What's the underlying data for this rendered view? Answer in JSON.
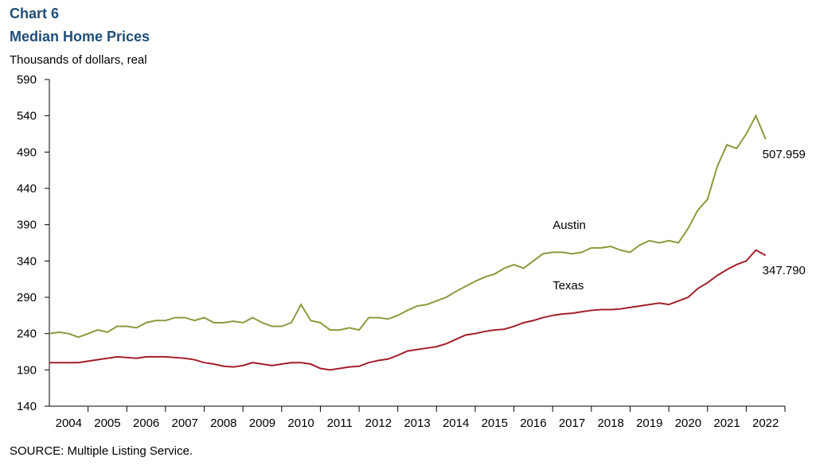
{
  "chart_data": {
    "type": "line",
    "title": "Chart 6",
    "subtitle": "Median Home Prices",
    "y_label": "Thousands  of dollars,  real",
    "source": "SOURCE: Multiple Listing Service.",
    "xlim": [
      2004,
      2023
    ],
    "xticks": [
      {
        "value": 2004.5,
        "label": "2004"
      },
      {
        "value": 2005.5,
        "label": "2005"
      },
      {
        "value": 2006.5,
        "label": "2006"
      },
      {
        "value": 2007.5,
        "label": "2007"
      },
      {
        "value": 2008.5,
        "label": "2008"
      },
      {
        "value": 2009.5,
        "label": "2009"
      },
      {
        "value": 2010.5,
        "label": "2010"
      },
      {
        "value": 2011.5,
        "label": "2011"
      },
      {
        "value": 2012.5,
        "label": "2012"
      },
      {
        "value": 2013.5,
        "label": "2013"
      },
      {
        "value": 2014.5,
        "label": "2014"
      },
      {
        "value": 2015.5,
        "label": "2015"
      },
      {
        "value": 2016.5,
        "label": "2016"
      },
      {
        "value": 2017.5,
        "label": "2017"
      },
      {
        "value": 2018.5,
        "label": "2018"
      },
      {
        "value": 2019.5,
        "label": "2019"
      },
      {
        "value": 2020.5,
        "label": "2020"
      },
      {
        "value": 2021.5,
        "label": "2021"
      },
      {
        "value": 2022.5,
        "label": "2022"
      }
    ],
    "ylim": [
      140,
      590
    ],
    "yticks": [
      140,
      190,
      240,
      290,
      340,
      390,
      440,
      490,
      540,
      590
    ],
    "grid": false,
    "x": [
      2004,
      2004.25,
      2004.5,
      2004.75,
      2005,
      2005.25,
      2005.5,
      2005.75,
      2006,
      2006.25,
      2006.5,
      2006.75,
      2007,
      2007.25,
      2007.5,
      2007.75,
      2008,
      2008.25,
      2008.5,
      2008.75,
      2009,
      2009.25,
      2009.5,
      2009.75,
      2010,
      2010.25,
      2010.5,
      2010.75,
      2011,
      2011.25,
      2011.5,
      2011.75,
      2012,
      2012.25,
      2012.5,
      2012.75,
      2013,
      2013.25,
      2013.5,
      2013.75,
      2014,
      2014.25,
      2014.5,
      2014.75,
      2015,
      2015.25,
      2015.5,
      2015.75,
      2016,
      2016.25,
      2016.5,
      2016.75,
      2017,
      2017.25,
      2017.5,
      2017.75,
      2018,
      2018.25,
      2018.5,
      2018.75,
      2019,
      2019.25,
      2019.5,
      2019.75,
      2020,
      2020.25,
      2020.5,
      2020.75,
      2021,
      2021.25,
      2021.5,
      2021.75,
      2022,
      2022.25,
      2022.5
    ],
    "series": [
      {
        "name": "Austin",
        "color": "#8c9a3e",
        "values": [
          240,
          242,
          240,
          235,
          240,
          245,
          242,
          250,
          250,
          248,
          255,
          258,
          258,
          262,
          262,
          258,
          262,
          255,
          255,
          257,
          255,
          262,
          255,
          250,
          250,
          255,
          280,
          258,
          255,
          245,
          245,
          248,
          245,
          262,
          262,
          260,
          265,
          272,
          278,
          280,
          285,
          290,
          298,
          305,
          312,
          318,
          322,
          330,
          335,
          330,
          340,
          350,
          352,
          352,
          350,
          352,
          358,
          358,
          360,
          355,
          352,
          362,
          368,
          365,
          368,
          365,
          385,
          410,
          425,
          470,
          500,
          495,
          515,
          540,
          507.959
        ],
        "value_labels": [
          null,
          null,
          null,
          null,
          null,
          null,
          null,
          null,
          null,
          null,
          null,
          null,
          null,
          null,
          null,
          null,
          null,
          null,
          null,
          null,
          null,
          null,
          null,
          null,
          null,
          null,
          null,
          null,
          null,
          null,
          null,
          null,
          null,
          null,
          null,
          null,
          null,
          null,
          null,
          null,
          null,
          null,
          null,
          null,
          null,
          null,
          null,
          null,
          null,
          null,
          null,
          null,
          null,
          null,
          null,
          null,
          null,
          null,
          null,
          null,
          null,
          null,
          null,
          null,
          null,
          null,
          null,
          null,
          null,
          null,
          null,
          null,
          null,
          null,
          "507.959"
        ]
      },
      {
        "name": "Texas",
        "color": "#a31f2b",
        "values": [
          200,
          200,
          200,
          200,
          202,
          204,
          206,
          208,
          207,
          206,
          208,
          208,
          208,
          207,
          206,
          204,
          200,
          198,
          195,
          194,
          196,
          200,
          198,
          196,
          198,
          200,
          200,
          198,
          192,
          190,
          192,
          194,
          195,
          200,
          203,
          205,
          210,
          216,
          218,
          220,
          222,
          226,
          232,
          238,
          240,
          243,
          245,
          246,
          250,
          255,
          258,
          262,
          265,
          267,
          268,
          270,
          272,
          273,
          273,
          274,
          276,
          278,
          280,
          282,
          280,
          285,
          290,
          302,
          310,
          320,
          328,
          335,
          340,
          355,
          347.79
        ],
        "value_labels": [
          null,
          null,
          null,
          null,
          null,
          null,
          null,
          null,
          null,
          null,
          null,
          null,
          null,
          null,
          null,
          null,
          null,
          null,
          null,
          null,
          null,
          null,
          null,
          null,
          null,
          null,
          null,
          null,
          null,
          null,
          null,
          null,
          null,
          null,
          null,
          null,
          null,
          null,
          null,
          null,
          null,
          null,
          null,
          null,
          null,
          null,
          null,
          null,
          null,
          null,
          null,
          null,
          null,
          null,
          null,
          null,
          null,
          null,
          null,
          null,
          null,
          null,
          null,
          null,
          null,
          null,
          null,
          null,
          null,
          null,
          null,
          null,
          null,
          null,
          "347.790"
        ]
      }
    ]
  }
}
